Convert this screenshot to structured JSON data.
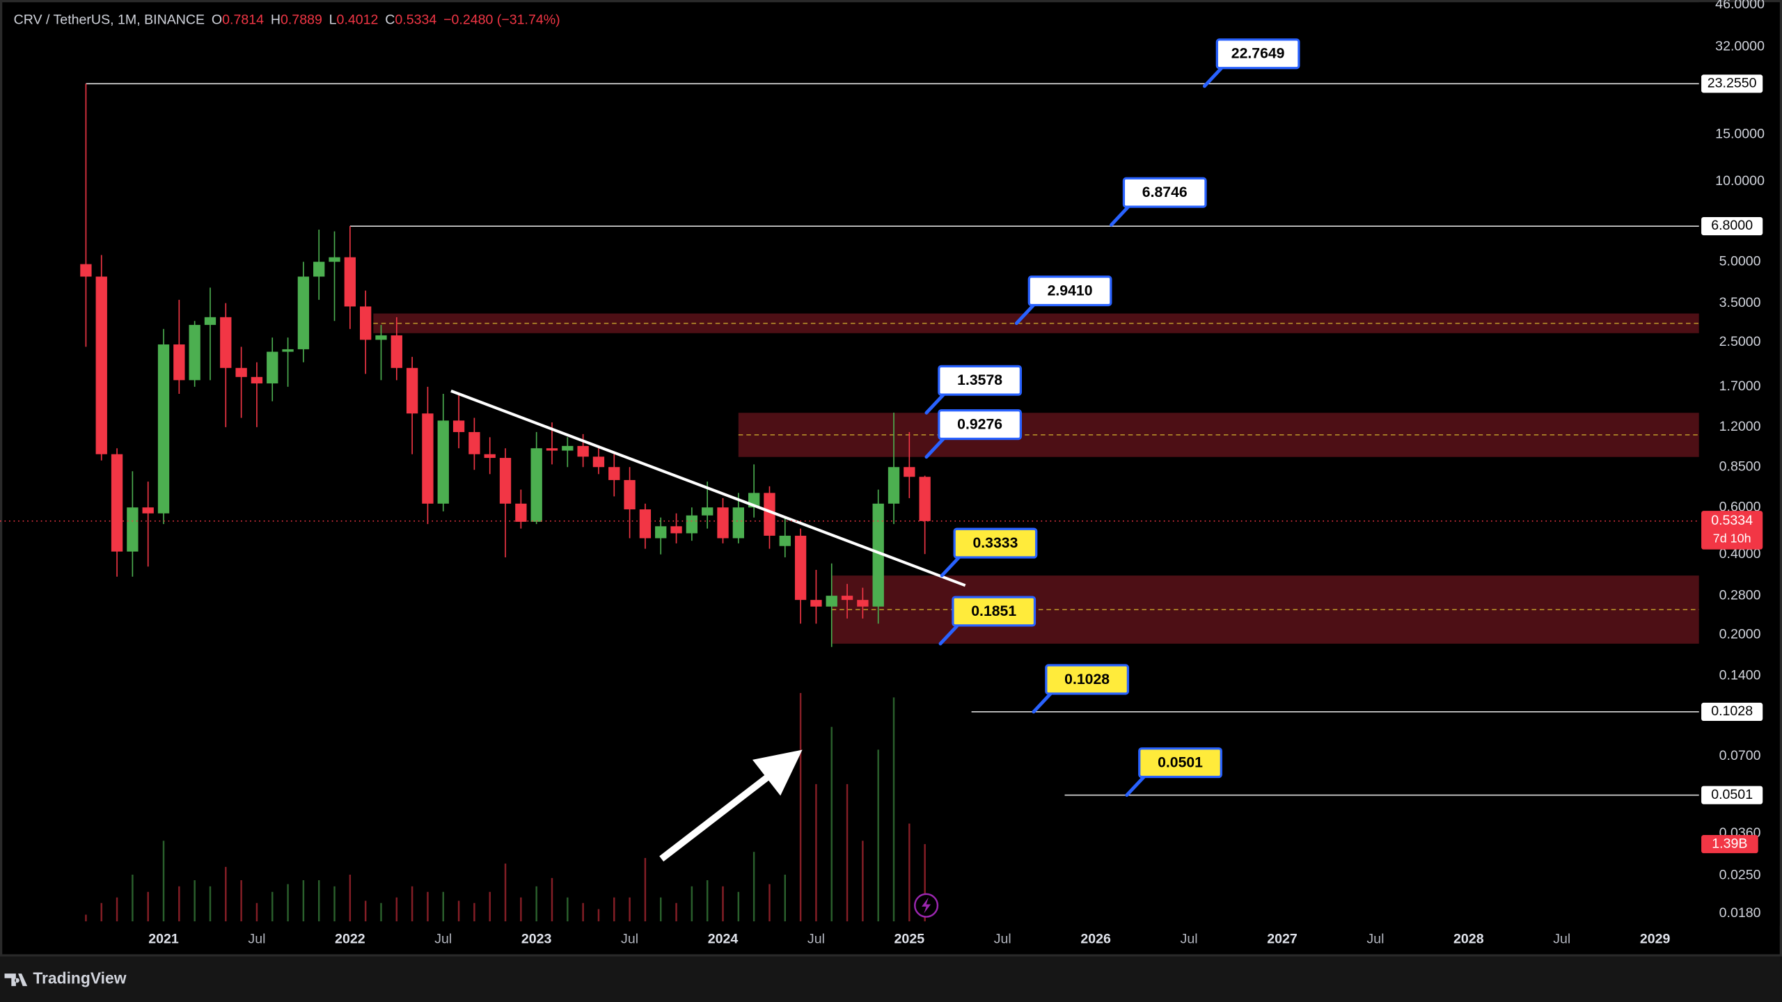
{
  "chart_data": {
    "type": "candlestick",
    "title": "CRV / TetherUS, 1M, BINANCE",
    "ohlc_labels": [
      "O",
      "H",
      "L",
      "C"
    ],
    "change_label": "−0.2480 (−31.74%)",
    "countdown": "7d 10h",
    "log": true,
    "grid": false,
    "up_color": "#4caf50",
    "down_color": "#f23645",
    "zone_color": "#4d0f15",
    "zone_mid_color": "#b8902a",
    "x": [
      -5,
      -4,
      -3,
      -2,
      -1,
      0,
      1,
      2,
      3,
      4,
      5,
      6,
      7,
      8,
      9,
      10,
      11,
      12,
      13,
      14,
      15,
      16,
      17,
      18,
      19,
      20,
      21,
      22,
      23,
      24,
      25,
      26,
      27,
      28,
      29,
      30,
      31,
      32,
      33,
      34,
      35,
      36,
      37,
      38,
      39,
      40,
      41,
      42,
      43,
      44,
      45,
      46,
      47,
      48,
      49
    ],
    "open": [
      4.9,
      4.4,
      0.95,
      0.41,
      0.6,
      0.57,
      2.45,
      1.8,
      2.9,
      3.1,
      2.0,
      1.85,
      1.75,
      2.3,
      2.35,
      4.4,
      5.0,
      5.2,
      3.4,
      2.55,
      2.65,
      2.0,
      1.35,
      0.62,
      1.27,
      1.15,
      0.95,
      0.92,
      0.62,
      0.53,
      1.0,
      0.98,
      1.02,
      0.93,
      0.85,
      0.76,
      0.59,
      0.46,
      0.51,
      0.48,
      0.56,
      0.6,
      0.46,
      0.6,
      0.68,
      0.43,
      0.47,
      0.27,
      0.255,
      0.28,
      0.27,
      0.255,
      0.62,
      0.85,
      0.7814
    ],
    "high": [
      23.255,
      5.3,
      1.0,
      0.82,
      0.75,
      2.8,
      3.6,
      3.0,
      4.0,
      3.5,
      2.4,
      2.1,
      2.6,
      2.6,
      5.0,
      6.6,
      6.5,
      6.8,
      3.9,
      2.9,
      3.1,
      2.2,
      1.7,
      1.6,
      1.6,
      1.3,
      1.1,
      1.0,
      0.7,
      1.15,
      1.25,
      1.1,
      1.13,
      1.0,
      0.95,
      0.85,
      0.62,
      0.55,
      0.57,
      0.6,
      0.75,
      0.65,
      0.68,
      0.87,
      0.72,
      0.55,
      0.5,
      0.35,
      0.37,
      0.31,
      0.3,
      0.7,
      1.36,
      1.15,
      0.7889
    ],
    "low": [
      2.4,
      0.9,
      0.33,
      0.33,
      0.36,
      0.52,
      1.6,
      1.7,
      1.8,
      1.2,
      1.3,
      1.2,
      1.5,
      1.7,
      2.1,
      3.6,
      3.0,
      2.8,
      1.9,
      1.8,
      1.8,
      0.95,
      0.52,
      0.58,
      1.0,
      0.83,
      0.8,
      0.39,
      0.5,
      0.52,
      0.87,
      0.85,
      0.85,
      0.8,
      0.66,
      0.46,
      0.42,
      0.4,
      0.44,
      0.45,
      0.5,
      0.44,
      0.44,
      0.55,
      0.42,
      0.39,
      0.22,
      0.22,
      0.18,
      0.23,
      0.23,
      0.22,
      0.52,
      0.65,
      0.4012
    ],
    "close": [
      4.4,
      0.95,
      0.41,
      0.6,
      0.57,
      2.45,
      1.8,
      2.9,
      3.1,
      2.0,
      1.85,
      1.75,
      2.3,
      2.35,
      4.4,
      5.0,
      5.2,
      3.4,
      2.55,
      2.65,
      2.0,
      1.35,
      0.62,
      1.27,
      1.15,
      0.95,
      0.92,
      0.62,
      0.53,
      1.0,
      0.98,
      1.02,
      0.93,
      0.85,
      0.76,
      0.59,
      0.46,
      0.51,
      0.48,
      0.56,
      0.6,
      0.46,
      0.6,
      0.68,
      0.47,
      0.47,
      0.27,
      0.255,
      0.28,
      0.27,
      0.255,
      0.62,
      0.85,
      0.7814,
      0.5334
    ],
    "volume": {
      "values": [
        0.12,
        0.33,
        0.43,
        0.84,
        0.53,
        1.45,
        0.63,
        0.74,
        0.63,
        0.98,
        0.74,
        0.33,
        0.53,
        0.67,
        0.74,
        0.74,
        0.63,
        0.84,
        0.37,
        0.33,
        0.43,
        0.63,
        0.53,
        0.53,
        0.37,
        0.33,
        0.53,
        1.04,
        0.43,
        0.63,
        0.78,
        0.43,
        0.33,
        0.22,
        0.43,
        0.43,
        1.14,
        0.43,
        0.33,
        0.63,
        0.74,
        0.63,
        0.53,
        1.25,
        0.67,
        0.84,
        4.11,
        2.47,
        3.5,
        2.47,
        1.45,
        3.09,
        4.03,
        1.76,
        1.39
      ],
      "last_label": "1.39B"
    },
    "xlim": [
      -10.53,
      98.83
    ],
    "ylim": [
      0.0162,
      47.9
    ],
    "xticks": [
      {
        "value": 0,
        "label": "2021"
      },
      {
        "value": 6,
        "label": "Jul"
      },
      {
        "value": 12,
        "label": "2022"
      },
      {
        "value": 18,
        "label": "Jul"
      },
      {
        "value": 24,
        "label": "2023"
      },
      {
        "value": 30,
        "label": "Jul"
      },
      {
        "value": 36,
        "label": "2024"
      },
      {
        "value": 42,
        "label": "Jul"
      },
      {
        "value": 48,
        "label": "2025"
      },
      {
        "value": 54,
        "label": "Jul"
      },
      {
        "value": 60,
        "label": "2026"
      },
      {
        "value": 66,
        "label": "Jul"
      },
      {
        "value": 72,
        "label": "2027"
      },
      {
        "value": 78,
        "label": "Jul"
      },
      {
        "value": 84,
        "label": "2028"
      },
      {
        "value": 90,
        "label": "Jul"
      },
      {
        "value": 96,
        "label": "2029"
      }
    ],
    "yticks": [
      {
        "value": 46,
        "label": "46.0000"
      },
      {
        "value": 32,
        "label": "32.0000"
      },
      {
        "value": 15,
        "label": "15.0000"
      },
      {
        "value": 10,
        "label": "10.0000"
      },
      {
        "value": 5,
        "label": "5.0000"
      },
      {
        "value": 3.5,
        "label": "3.5000"
      },
      {
        "value": 2.5,
        "label": "2.5000"
      },
      {
        "value": 1.7,
        "label": "1.7000"
      },
      {
        "value": 1.2,
        "label": "1.2000"
      },
      {
        "value": 0.85,
        "label": "0.8500"
      },
      {
        "value": 0.6,
        "label": "0.6000"
      },
      {
        "value": 0.4,
        "label": "0.4000"
      },
      {
        "value": 0.28,
        "label": "0.2800"
      },
      {
        "value": 0.2,
        "label": "0.2000"
      },
      {
        "value": 0.14,
        "label": "0.1400"
      },
      {
        "value": 0.07,
        "label": "0.0700"
      },
      {
        "value": 0.036,
        "label": "0.0360"
      },
      {
        "value": 0.025,
        "label": "0.0250"
      },
      {
        "value": 0.018,
        "label": "0.0180"
      }
    ],
    "levels": [
      {
        "value": 23.255,
        "label": "23.2550",
        "x": -5
      },
      {
        "value": 6.8,
        "label": "6.8000",
        "x": 12
      },
      {
        "value": 0.1028,
        "label": "0.1028",
        "x": 52
      },
      {
        "value": 0.0501,
        "label": "0.0501",
        "x": 58
      }
    ],
    "zones": [
      {
        "low": 2.7,
        "high": 3.2,
        "x": 13.5
      },
      {
        "low": 0.9276,
        "high": 1.3578,
        "x": 37
      },
      {
        "low": 0.1851,
        "high": 0.3333,
        "x": 43
      }
    ],
    "trendline": {
      "x": [
        18.5,
        51.6
      ],
      "y": [
        1.64,
        0.306
      ]
    },
    "annotations": [
      {
        "value": 22.7649,
        "label": "22.7649",
        "x": 67,
        "color": "#ffffff"
      },
      {
        "value": 6.8746,
        "label": "6.8746",
        "x": 61,
        "color": "#ffffff"
      },
      {
        "value": 2.941,
        "label": "2.9410",
        "x": 54.9,
        "color": "#ffffff"
      },
      {
        "value": 1.3578,
        "label": "1.3578",
        "x": 49.1,
        "color": "#ffffff"
      },
      {
        "value": 0.9276,
        "label": "0.9276",
        "x": 49.1,
        "color": "#ffffff"
      },
      {
        "value": 0.3333,
        "label": "0.3333",
        "x": 50.1,
        "color": "#ffeb3b"
      },
      {
        "value": 0.1851,
        "label": "0.1851",
        "x": 50,
        "color": "#ffeb3b"
      },
      {
        "value": 0.1028,
        "label": "0.1028",
        "x": 56,
        "color": "#ffeb3b"
      },
      {
        "value": 0.0501,
        "label": "0.0501",
        "x": 62,
        "color": "#ffeb3b"
      }
    ]
  },
  "branding": "TradingView"
}
